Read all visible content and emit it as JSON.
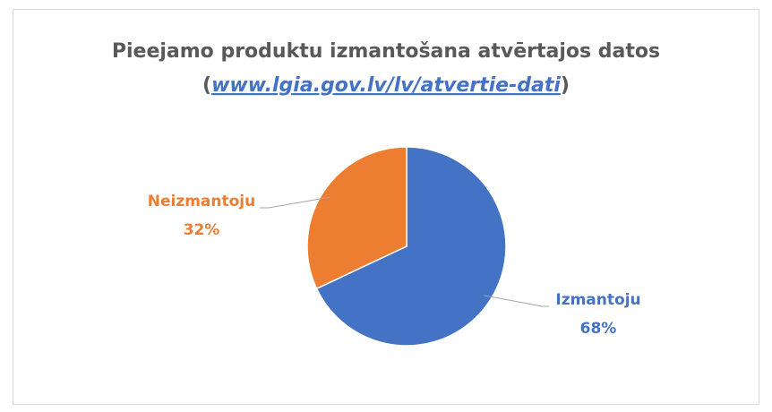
{
  "chart_data": {
    "type": "pie",
    "title": "Pieejamo produktu izmantošana atvērtajos datos",
    "subtitle": {
      "open": "(",
      "link": "www.lgia.gov.lv/lv/atvertie-dati",
      "close": ")"
    },
    "categories": [
      "Izmantoju",
      "Neizmantoju"
    ],
    "values": [
      68,
      32
    ],
    "value_labels": [
      "68%",
      "32%"
    ],
    "colors": [
      "#4472c4",
      "#ed7d31"
    ]
  }
}
